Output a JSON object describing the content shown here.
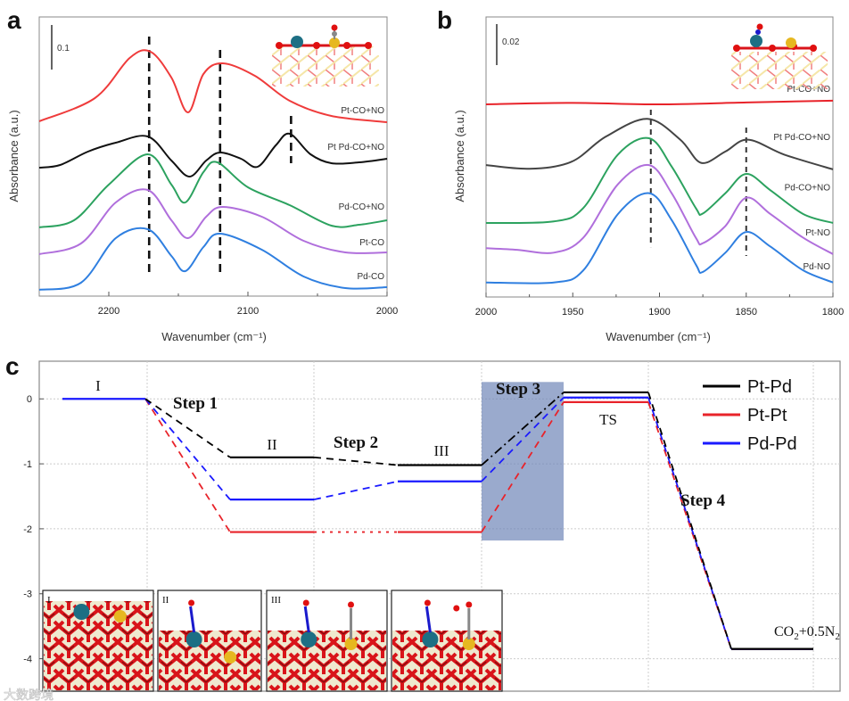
{
  "chart_data": [
    {
      "panel": "a",
      "type": "line",
      "xlabel": "Wavenumber (cm⁻¹)",
      "ylabel": "Absorbance (a.u.)",
      "xlim": [
        2250,
        2000
      ],
      "ylim": [
        0,
        0.626
      ],
      "xticks": [
        2200,
        2100,
        2000
      ],
      "xtick_labels": [
        "2200",
        "2100",
        "2000"
      ],
      "minor_xticks": [
        2150,
        2050
      ],
      "scale_bar": {
        "label": "0.1",
        "value": 0.1
      },
      "series": [
        {
          "name": "Pt-CO+NO",
          "color": "#ef3b3b",
          "points": [
            [
              2250,
              0.392
            ],
            [
              2210,
              0.444
            ],
            [
              2185,
              0.534
            ],
            [
              2170,
              0.548
            ],
            [
              2155,
              0.49
            ],
            [
              2143,
              0.412
            ],
            [
              2132,
              0.498
            ],
            [
              2118,
              0.522
            ],
            [
              2095,
              0.494
            ],
            [
              2070,
              0.438
            ],
            [
              2040,
              0.404
            ],
            [
              2000,
              0.39
            ]
          ]
        },
        {
          "name": "Pt Pd-CO+NO",
          "color": "#111111",
          "points": [
            [
              2250,
              0.288
            ],
            [
              2235,
              0.294
            ],
            [
              2215,
              0.324
            ],
            [
              2195,
              0.344
            ],
            [
              2172,
              0.358
            ],
            [
              2155,
              0.304
            ],
            [
              2142,
              0.268
            ],
            [
              2130,
              0.304
            ],
            [
              2120,
              0.322
            ],
            [
              2105,
              0.308
            ],
            [
              2093,
              0.29
            ],
            [
              2080,
              0.338
            ],
            [
              2070,
              0.364
            ],
            [
              2055,
              0.318
            ],
            [
              2040,
              0.298
            ],
            [
              2020,
              0.3
            ],
            [
              2000,
              0.308
            ]
          ]
        },
        {
          "name": "Pd-CO+NO",
          "color": "#2ca25f",
          "points": [
            [
              2250,
              0.154
            ],
            [
              2225,
              0.17
            ],
            [
              2200,
              0.25
            ],
            [
              2172,
              0.318
            ],
            [
              2155,
              0.25
            ],
            [
              2145,
              0.21
            ],
            [
              2132,
              0.278
            ],
            [
              2122,
              0.3
            ],
            [
              2100,
              0.244
            ],
            [
              2070,
              0.204
            ],
            [
              2040,
              0.158
            ],
            [
              2020,
              0.16
            ],
            [
              2000,
              0.17
            ]
          ]
        },
        {
          "name": "Pt-CO",
          "color": "#b06fdc",
          "points": [
            [
              2250,
              0.094
            ],
            [
              2220,
              0.118
            ],
            [
              2195,
              0.21
            ],
            [
              2172,
              0.238
            ],
            [
              2155,
              0.17
            ],
            [
              2143,
              0.13
            ],
            [
              2130,
              0.178
            ],
            [
              2118,
              0.2
            ],
            [
              2090,
              0.178
            ],
            [
              2060,
              0.124
            ],
            [
              2030,
              0.098
            ],
            [
              2000,
              0.098
            ]
          ]
        },
        {
          "name": "Pd-CO",
          "color": "#2f7fe0",
          "points": [
            [
              2250,
              0.014
            ],
            [
              2220,
              0.03
            ],
            [
              2195,
              0.13
            ],
            [
              2172,
              0.15
            ],
            [
              2155,
              0.09
            ],
            [
              2145,
              0.056
            ],
            [
              2132,
              0.11
            ],
            [
              2120,
              0.14
            ],
            [
              2090,
              0.104
            ],
            [
              2060,
              0.044
            ],
            [
              2030,
              0.018
            ],
            [
              2000,
              0.02
            ]
          ]
        }
      ],
      "reference_lines": [
        {
          "x": 2171,
          "from": 0.048,
          "to": 0.582
        },
        {
          "x": 2120,
          "from": 0.054,
          "to": 0.552
        },
        {
          "x": 2069,
          "from": 0.298,
          "to": 0.404
        }
      ],
      "labels_y": [
        0.41,
        0.328,
        0.194,
        0.114,
        0.038
      ]
    },
    {
      "panel": "b",
      "type": "line",
      "xlabel": "Wavenumber (cm⁻¹)",
      "ylabel": "Absorbance (a.u.)",
      "xlim": [
        2000,
        1800
      ],
      "ylim": [
        0,
        0.1365
      ],
      "xticks": [
        2000,
        1950,
        1900,
        1850,
        1800
      ],
      "xtick_labels": [
        "2000",
        "1950",
        "1900",
        "1850",
        "1800"
      ],
      "minor_xticks": [
        1975,
        1925,
        1875,
        1825
      ],
      "scale_bar": {
        "label": "0.02",
        "value": 0.02
      },
      "series": [
        {
          "name": "Pt-CO+NO",
          "color": "#e8232a",
          "points": [
            [
              2000,
              0.0939
            ],
            [
              1950,
              0.0946
            ],
            [
              1900,
              0.0939
            ],
            [
              1850,
              0.0948
            ],
            [
              1800,
              0.0957
            ]
          ]
        },
        {
          "name": "Pt Pd-CO+NO",
          "color": "#444444",
          "points": [
            [
              2000,
              0.0643
            ],
            [
              1975,
              0.0625
            ],
            [
              1951,
              0.0658
            ],
            [
              1931,
              0.0781
            ],
            [
              1907,
              0.0868
            ],
            [
              1888,
              0.0767
            ],
            [
              1876,
              0.0654
            ],
            [
              1862,
              0.0709
            ],
            [
              1849,
              0.0767
            ],
            [
              1828,
              0.0694
            ],
            [
              1800,
              0.0622
            ]
          ]
        },
        {
          "name": "Pd-CO+NO",
          "color": "#2ca25f",
          "points": [
            [
              2000,
              0.0361
            ],
            [
              1961,
              0.0368
            ],
            [
              1944,
              0.0433
            ],
            [
              1924,
              0.0694
            ],
            [
              1906,
              0.0774
            ],
            [
              1893,
              0.0636
            ],
            [
              1879,
              0.0433
            ],
            [
              1875,
              0.0407
            ],
            [
              1862,
              0.0506
            ],
            [
              1850,
              0.06
            ],
            [
              1836,
              0.052
            ],
            [
              1817,
              0.0404
            ],
            [
              1800,
              0.0361
            ]
          ]
        },
        {
          "name": "Pt-NO",
          "color": "#b06fdc",
          "points": [
            [
              2000,
              0.0238
            ],
            [
              1982,
              0.023
            ],
            [
              1961,
              0.0216
            ],
            [
              1944,
              0.0288
            ],
            [
              1924,
              0.0549
            ],
            [
              1906,
              0.0643
            ],
            [
              1893,
              0.0506
            ],
            [
              1879,
              0.0288
            ],
            [
              1875,
              0.0262
            ],
            [
              1862,
              0.0346
            ],
            [
              1850,
              0.0484
            ],
            [
              1836,
              0.0404
            ],
            [
              1817,
              0.0288
            ],
            [
              1800,
              0.0209
            ]
          ]
        },
        {
          "name": "Pd-NO",
          "color": "#2f7fe0",
          "points": [
            [
              2000,
              0.0071
            ],
            [
              1961,
              0.0071
            ],
            [
              1944,
              0.0129
            ],
            [
              1924,
              0.0404
            ],
            [
              1906,
              0.0506
            ],
            [
              1893,
              0.0375
            ],
            [
              1879,
              0.0158
            ],
            [
              1875,
              0.0122
            ],
            [
              1862,
              0.0216
            ],
            [
              1850,
              0.0317
            ],
            [
              1836,
              0.0245
            ],
            [
              1817,
              0.0129
            ],
            [
              1800,
              0.0071
            ]
          ]
        }
      ],
      "reference_lines": [
        {
          "x": 1905,
          "from": 0.0243,
          "to": 0.0913
        },
        {
          "x": 1850,
          "from": 0.02,
          "to": 0.0826
        }
      ],
      "labels_y": [
        0.1,
        0.0765,
        0.052,
        0.03,
        0.0135
      ]
    },
    {
      "panel": "c",
      "type": "line",
      "subtype": "energy-profile",
      "ylim": [
        -4.5,
        0.58
      ],
      "yticks": [
        0,
        -1,
        -2,
        -3,
        -4
      ],
      "ytick_labels": [
        "0",
        "-1",
        "-2",
        "-3",
        "-4"
      ],
      "states": [
        "I",
        "II",
        "III",
        "TS",
        "CO2+0.5N2"
      ],
      "state_labels": {
        "I": "I",
        "II": "II",
        "III": "III",
        "TS": "TS",
        "final_main": "CO",
        "final_sub1": "2",
        "final_mid": "+0.5N",
        "final_sub2": "2"
      },
      "step_labels": [
        "Step 1",
        "Step 2",
        "Step 3",
        "Step 4"
      ],
      "series": [
        {
          "name": "Pt-Pd",
          "color": "#000000",
          "values": [
            0,
            -0.9,
            -1.02,
            0.1,
            -3.85
          ],
          "connectors": [
            "dash",
            "dash",
            "dashdot",
            "dash"
          ]
        },
        {
          "name": "Pt-Pt",
          "color": "#e8232a",
          "values": [
            0,
            -2.05,
            -2.05,
            -0.05,
            -3.85
          ],
          "connectors": [
            "dash",
            "dot",
            "dash",
            "dash"
          ]
        },
        {
          "name": "Pd-Pd",
          "color": "#1a1aff",
          "values": [
            0,
            -1.55,
            -1.27,
            0.02,
            -3.85
          ],
          "connectors": [
            "dash",
            "dash",
            "dash",
            "dash"
          ]
        }
      ],
      "highlight_region": {
        "state_from": "III",
        "state_to": "TS",
        "y_range": [
          -2.18,
          0.26
        ],
        "color": "#6f86b8"
      },
      "legend": "top-right",
      "inset_labels": [
        "I",
        "II",
        "III",
        ""
      ],
      "grid": true
    }
  ],
  "panels": {
    "a": "a",
    "b": "b",
    "c": "c"
  },
  "watermark": "大数跨境"
}
